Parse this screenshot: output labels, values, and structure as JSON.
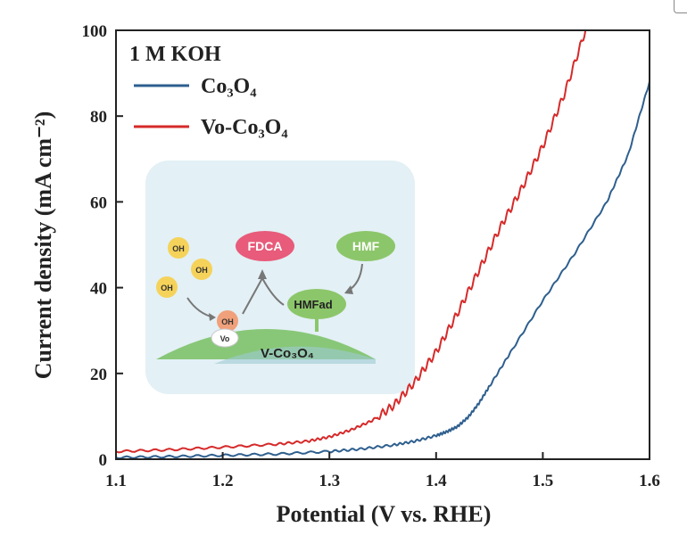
{
  "chart_data": {
    "type": "line",
    "title": "",
    "xlabel": "Potential (V vs. RHE)",
    "ylabel": "Current density (mA cm⁻²)",
    "xlim": [
      1.1,
      1.6
    ],
    "ylim": [
      0,
      100
    ],
    "x_ticks": [
      "1.1",
      "1.2",
      "1.3",
      "1.4",
      "1.5",
      "1.6"
    ],
    "y_ticks": [
      "0",
      "20",
      "40",
      "60",
      "80",
      "100"
    ],
    "annotation": "1 M KOH",
    "legend_position": "top-left",
    "series": [
      {
        "name": "Co3O4",
        "color": "#2e5f8e",
        "x": [
          1.1,
          1.15,
          1.2,
          1.25,
          1.3,
          1.33,
          1.36,
          1.38,
          1.4,
          1.41,
          1.42,
          1.43,
          1.44,
          1.45,
          1.47,
          1.5,
          1.53,
          1.56,
          1.58,
          1.6
        ],
        "y": [
          0.4,
          0.6,
          0.9,
          1.2,
          1.8,
          2.4,
          3.3,
          4.2,
          5.5,
          6.4,
          7.6,
          9.8,
          13,
          17,
          25,
          37,
          48,
          60,
          71,
          88
        ]
      },
      {
        "name": "Vo-Co3O4",
        "color": "#d62a2a",
        "x": [
          1.1,
          1.15,
          1.2,
          1.25,
          1.28,
          1.3,
          1.32,
          1.34,
          1.36,
          1.38,
          1.4,
          1.42,
          1.44,
          1.46,
          1.48,
          1.5,
          1.52,
          1.54
        ],
        "y": [
          1.8,
          2.2,
          2.8,
          3.5,
          4.2,
          5.2,
          6.8,
          9.0,
          12.5,
          18,
          25,
          34,
          44,
          54,
          63,
          73,
          85,
          100
        ]
      }
    ]
  },
  "legend": {
    "annotation": "1 M KOH",
    "items": [
      {
        "label": "Co₃O₄",
        "color": "#2e5f8e"
      },
      {
        "label": "Vo-Co₃O₄",
        "color": "#d62a2a"
      }
    ]
  },
  "inset": {
    "oh_label": "OH",
    "fdca": "FDCA",
    "hmf": "HMF",
    "hmf_ad": "HMFad",
    "vo": "Vo",
    "catalyst": "V-Co₃O₄",
    "colors": {
      "panel": "#e3f0f5",
      "oh": "#f5d25a",
      "oh_adsorbed": "#f0a07a",
      "fdca": "#e85b7a",
      "hmf": "#8cc66a",
      "support": "#88c778"
    }
  }
}
